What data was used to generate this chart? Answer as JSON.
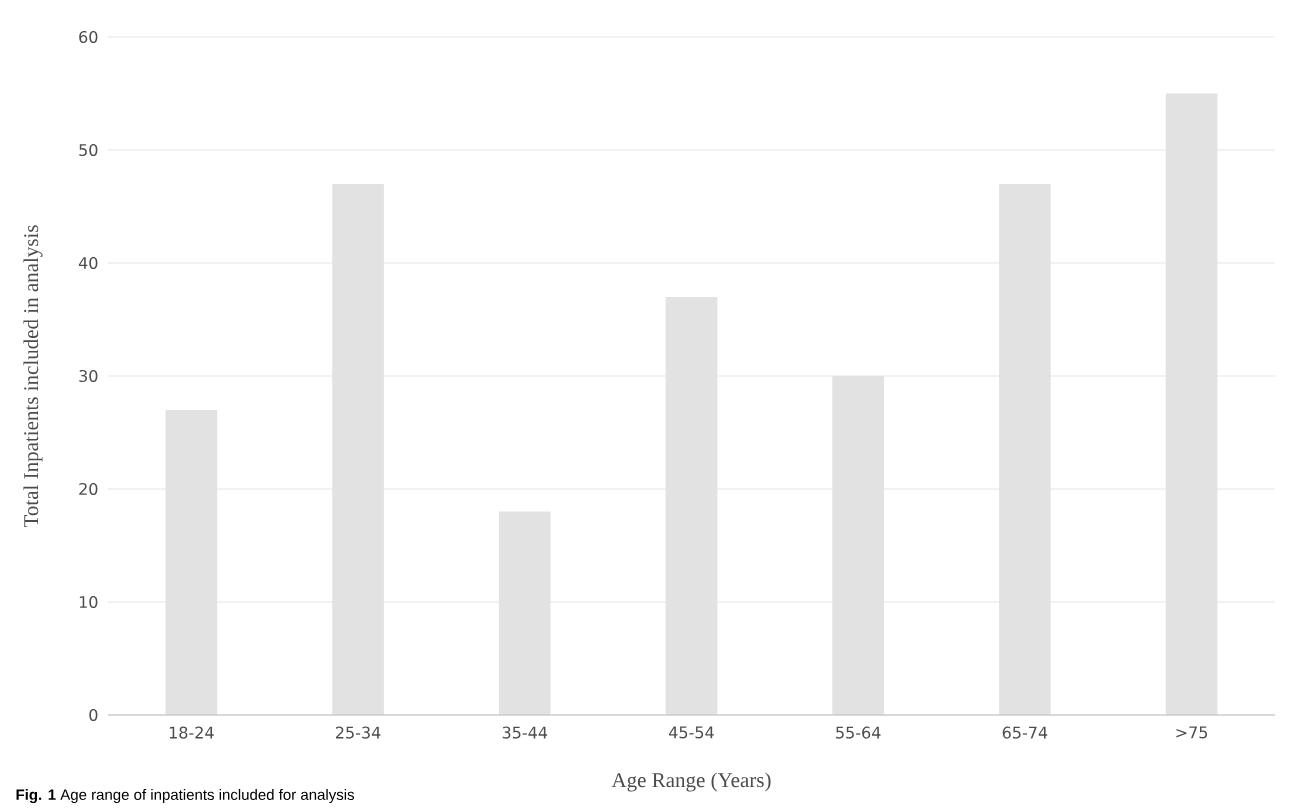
{
  "chart_data": {
    "type": "bar",
    "categories": [
      "18-24",
      "25-34",
      "35-44",
      "45-54",
      "55-64",
      "65-74",
      ">75"
    ],
    "values": [
      27,
      47,
      18,
      37,
      30,
      47,
      55
    ],
    "color": "#e2e2e2",
    "xlabel": "Age Range (Years)",
    "ylabel": "Total Inpatients included in analysis",
    "ylim": [
      0,
      60
    ],
    "yticks": [
      0,
      10,
      20,
      30,
      40,
      50,
      60
    ],
    "grid": "y",
    "annotations": [
      "**Fig. 1** Age range of inpatients included for analysis"
    ]
  }
}
